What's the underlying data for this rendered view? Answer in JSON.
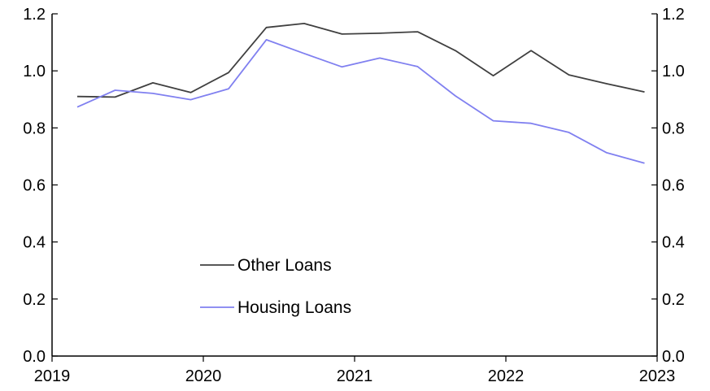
{
  "chart_data": {
    "type": "line",
    "title": "",
    "xlabel": "",
    "ylabel": "",
    "x_ticks": [
      "2019",
      "2020",
      "2021",
      "2022",
      "2023"
    ],
    "y_ticks_left": [
      "0.0",
      "0.2",
      "0.4",
      "0.6",
      "0.8",
      "1.0",
      "1.2"
    ],
    "y_ticks_right": [
      "0.0",
      "0.2",
      "0.4",
      "0.6",
      "0.8",
      "1.0",
      "1.2"
    ],
    "ylim": [
      0,
      1.2
    ],
    "xlim": [
      2019.0,
      2023.0
    ],
    "grid": false,
    "legend_position": "bottom-center",
    "x": [
      "2019-03",
      "2019-06",
      "2019-09",
      "2019-12",
      "2020-03",
      "2020-06",
      "2020-09",
      "2020-12",
      "2021-03",
      "2021-06",
      "2021-09",
      "2021-12",
      "2022-03",
      "2022-06",
      "2022-09",
      "2022-12"
    ],
    "series": [
      {
        "name": "Other Loans",
        "color": "#404040",
        "values": [
          0.91,
          0.908,
          0.958,
          0.924,
          0.994,
          1.152,
          1.166,
          1.129,
          1.132,
          1.137,
          1.071,
          0.983,
          1.071,
          0.986,
          0.955,
          0.926
        ]
      },
      {
        "name": "Housing Loans",
        "color": "#8080f0",
        "values": [
          0.873,
          0.932,
          0.921,
          0.899,
          0.937,
          1.109,
          1.061,
          1.014,
          1.045,
          1.015,
          0.912,
          0.825,
          0.816,
          0.784,
          0.713,
          0.676
        ]
      }
    ]
  }
}
